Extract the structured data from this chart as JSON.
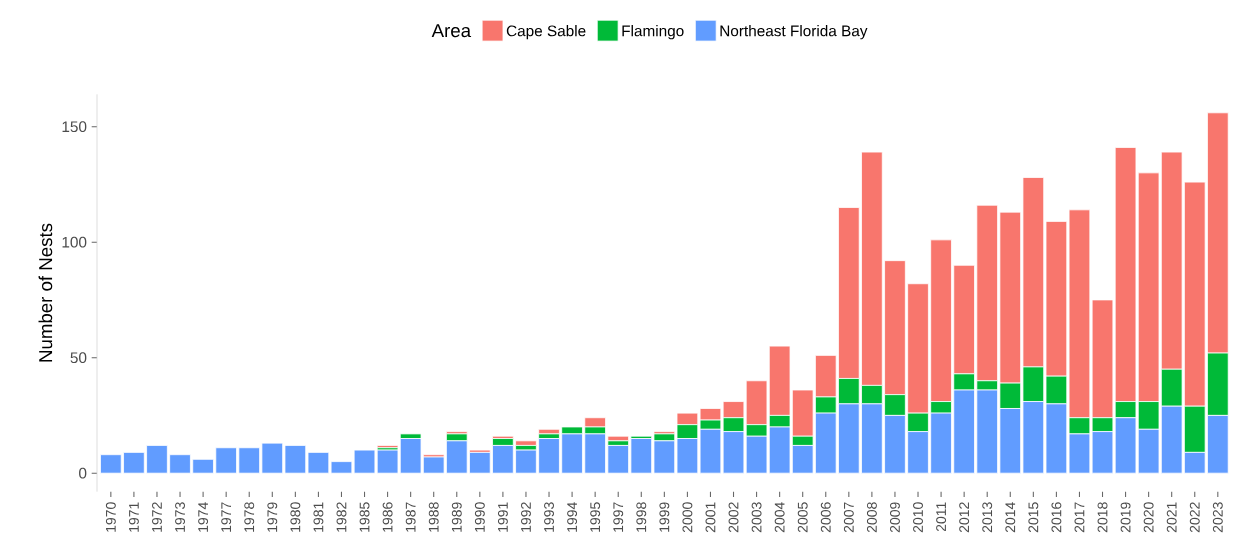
{
  "chart_data": {
    "type": "bar",
    "stacked": true,
    "ylabel": "Number of Nests",
    "legend_title": "Area",
    "legend": "top",
    "grid": false,
    "categories": [
      "1970",
      "1971",
      "1972",
      "1973",
      "1974",
      "1977",
      "1978",
      "1979",
      "1980",
      "1981",
      "1982",
      "1985",
      "1986",
      "1987",
      "1988",
      "1989",
      "1990",
      "1991",
      "1992",
      "1993",
      "1994",
      "1995",
      "1997",
      "1998",
      "1999",
      "2000",
      "2001",
      "2002",
      "2003",
      "2004",
      "2005",
      "2006",
      "2007",
      "2008",
      "2009",
      "2010",
      "2011",
      "2012",
      "2013",
      "2014",
      "2015",
      "2016",
      "2017",
      "2018",
      "2019",
      "2020",
      "2021",
      "2022",
      "2023"
    ],
    "ylim": [
      -8,
      164
    ],
    "yticks": [
      0,
      50,
      100,
      150
    ],
    "series": [
      {
        "name": "Northeast Florida Bay",
        "color": "#619cff",
        "values": [
          8,
          9,
          12,
          8,
          6,
          11,
          11,
          13,
          12,
          9,
          5,
          10,
          10,
          15,
          7,
          14,
          9,
          12,
          10,
          15,
          17,
          17,
          12,
          15,
          14,
          15,
          19,
          18,
          16,
          20,
          12,
          26,
          30,
          30,
          25,
          18,
          26,
          36,
          36,
          28,
          31,
          30,
          17,
          18,
          24,
          19,
          29,
          9,
          25
        ]
      },
      {
        "name": "Flamingo",
        "color": "#00ba38",
        "values": [
          0,
          0,
          0,
          0,
          0,
          0,
          0,
          0,
          0,
          0,
          0,
          0,
          1,
          2,
          0,
          3,
          0,
          3,
          2,
          2,
          3,
          3,
          2,
          1,
          3,
          6,
          4,
          6,
          5,
          5,
          4,
          7,
          11,
          8,
          9,
          8,
          5,
          7,
          4,
          11,
          15,
          12,
          7,
          6,
          7,
          12,
          16,
          20,
          27
        ]
      },
      {
        "name": "Cape Sable",
        "color": "#f8766d",
        "values": [
          0,
          0,
          0,
          0,
          0,
          0,
          0,
          0,
          0,
          0,
          0,
          0,
          1,
          0,
          1,
          1,
          1,
          1,
          2,
          2,
          0,
          4,
          2,
          0,
          1,
          5,
          5,
          7,
          19,
          30,
          20,
          18,
          74,
          101,
          58,
          56,
          70,
          47,
          76,
          74,
          82,
          67,
          90,
          51,
          110,
          99,
          94,
          97,
          104
        ]
      }
    ]
  }
}
